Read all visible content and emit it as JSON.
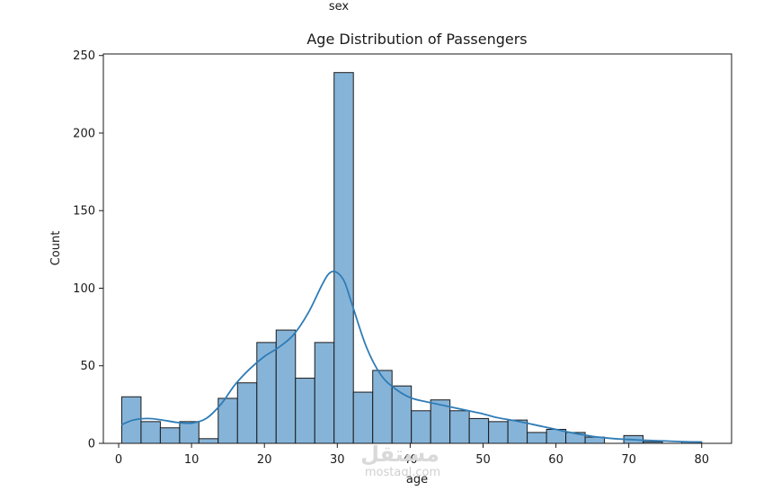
{
  "stray_text": "sex",
  "watermark": {
    "main": "مستقل",
    "sub": "mostaql.com"
  },
  "chart_data": {
    "type": "bar",
    "title": "Age Distribution of Passengers",
    "xlabel": "age",
    "ylabel": "Count",
    "xlim": [
      -2.1,
      84.1
    ],
    "ylim": [
      0,
      251
    ],
    "xticks": [
      0,
      10,
      20,
      30,
      40,
      50,
      60,
      70,
      80
    ],
    "yticks": [
      0,
      50,
      100,
      150,
      200,
      250
    ],
    "bar_color": "#86b4d9",
    "edge_color": "#1a1a1a",
    "kde_color": "#2f7cb6",
    "bins": [
      {
        "x0": 0.42,
        "x1": 3.07,
        "count": 30
      },
      {
        "x0": 3.07,
        "x1": 5.72,
        "count": 14
      },
      {
        "x0": 5.72,
        "x1": 8.37,
        "count": 10
      },
      {
        "x0": 8.37,
        "x1": 11.01,
        "count": 14
      },
      {
        "x0": 11.01,
        "x1": 13.66,
        "count": 3
      },
      {
        "x0": 13.66,
        "x1": 16.31,
        "count": 29
      },
      {
        "x0": 16.31,
        "x1": 18.96,
        "count": 39
      },
      {
        "x0": 18.96,
        "x1": 21.61,
        "count": 65
      },
      {
        "x0": 21.61,
        "x1": 24.26,
        "count": 73
      },
      {
        "x0": 24.26,
        "x1": 26.91,
        "count": 42
      },
      {
        "x0": 26.91,
        "x1": 29.56,
        "count": 65
      },
      {
        "x0": 29.56,
        "x1": 32.21,
        "count": 239
      },
      {
        "x0": 32.21,
        "x1": 34.86,
        "count": 33
      },
      {
        "x0": 34.86,
        "x1": 37.51,
        "count": 47
      },
      {
        "x0": 37.51,
        "x1": 40.16,
        "count": 37
      },
      {
        "x0": 40.16,
        "x1": 42.81,
        "count": 21
      },
      {
        "x0": 42.81,
        "x1": 45.46,
        "count": 28
      },
      {
        "x0": 45.46,
        "x1": 48.11,
        "count": 21
      },
      {
        "x0": 48.11,
        "x1": 50.76,
        "count": 16
      },
      {
        "x0": 50.76,
        "x1": 53.41,
        "count": 14
      },
      {
        "x0": 53.41,
        "x1": 56.06,
        "count": 15
      },
      {
        "x0": 56.06,
        "x1": 58.71,
        "count": 7
      },
      {
        "x0": 58.71,
        "x1": 61.36,
        "count": 9
      },
      {
        "x0": 61.36,
        "x1": 64.01,
        "count": 7
      },
      {
        "x0": 64.01,
        "x1": 66.66,
        "count": 4
      },
      {
        "x0": 66.66,
        "x1": 69.31,
        "count": 0
      },
      {
        "x0": 69.31,
        "x1": 71.96,
        "count": 5
      },
      {
        "x0": 71.96,
        "x1": 74.61,
        "count": 1
      },
      {
        "x0": 74.61,
        "x1": 77.26,
        "count": 0
      },
      {
        "x0": 77.26,
        "x1": 80.0,
        "count": 1
      }
    ],
    "kde": {
      "x": [
        0.4,
        2,
        4,
        6,
        8,
        10,
        12,
        14,
        16,
        18,
        20,
        22,
        24,
        26,
        28,
        29,
        30,
        31,
        32,
        34,
        36,
        38,
        40,
        42,
        45,
        48,
        50,
        52,
        55,
        58,
        60,
        62,
        65,
        68,
        70,
        72,
        75,
        78,
        80
      ],
      "y": [
        12,
        15,
        16,
        15,
        13.5,
        13,
        16,
        25,
        38,
        48,
        56,
        62,
        70,
        84,
        103,
        110,
        110,
        104,
        90,
        62,
        44,
        35,
        29.5,
        27,
        24,
        21,
        19,
        16.5,
        14,
        11,
        9,
        7,
        4.5,
        3,
        2.5,
        2,
        1.5,
        1,
        0.8
      ]
    }
  }
}
